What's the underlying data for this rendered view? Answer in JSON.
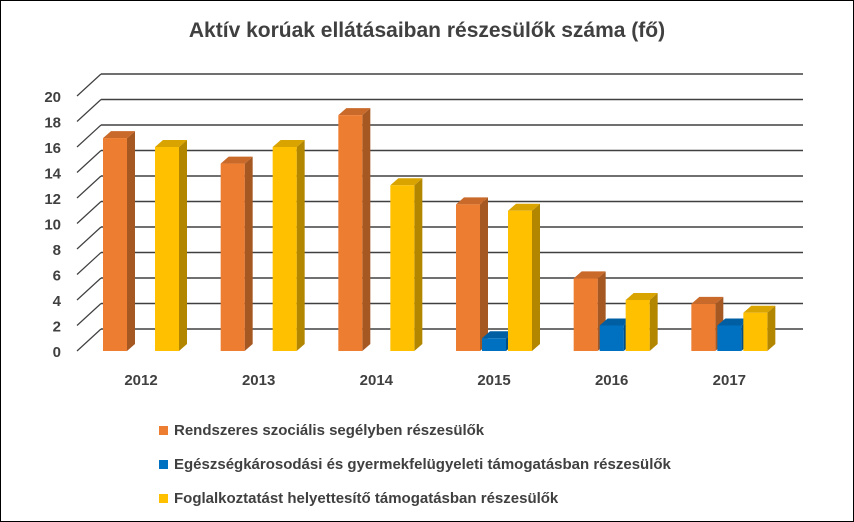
{
  "chart_data": {
    "type": "bar",
    "title": "Aktív korúak ellátásaiban részesülők száma (fő)",
    "categories": [
      "2012",
      "2013",
      "2014",
      "2015",
      "2016",
      "2017"
    ],
    "series": [
      {
        "name": "Rendszeres szociális segélyben részesülők",
        "color": "#ED7D31",
        "values": [
          16.7,
          14.7,
          18.5,
          11.5,
          5.7,
          3.7
        ]
      },
      {
        "name": "Egészségkárosodási és gyermekfelügyeleti támogatásban részesülők",
        "color": "#0070C0",
        "values": [
          0,
          0,
          0,
          1,
          2,
          2
        ]
      },
      {
        "name": "Foglalkoztatást helyettesítő támogatásban részesülők",
        "color": "#FFC000",
        "values": [
          16,
          16,
          13,
          11,
          4,
          3
        ]
      }
    ],
    "ylim": [
      0,
      20
    ],
    "yticks": [
      "0",
      "2",
      "4",
      "6",
      "8",
      "10",
      "12",
      "14",
      "16",
      "18",
      "20"
    ],
    "grid": true,
    "legend_position": "bottom"
  }
}
